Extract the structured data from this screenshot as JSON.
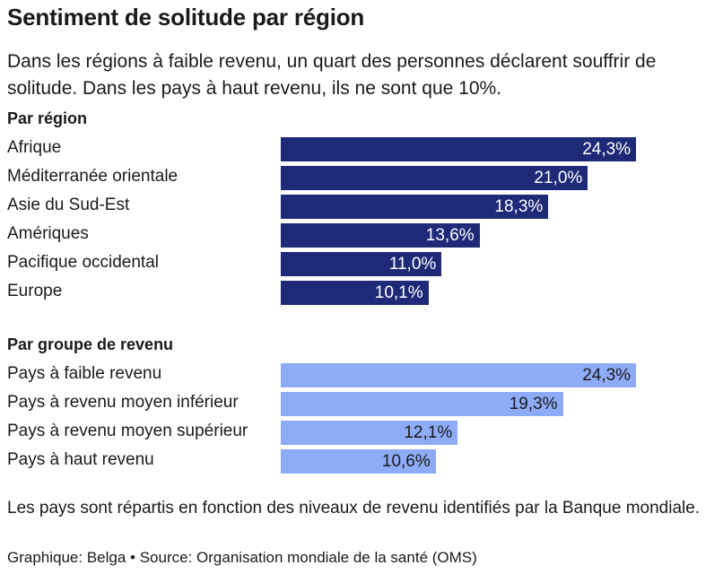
{
  "chart_data": {
    "type": "bar",
    "orientation": "horizontal",
    "title": "Sentiment de solitude par région",
    "subtitle": "Dans les régions à faible revenu, un quart des personnes déclarent souffrir de solitude. Dans les pays à haut revenu, ils ne sont que 10%.",
    "xlim": [
      0,
      25
    ],
    "groups": [
      {
        "name": "Par région",
        "color": "#1e2a78",
        "value_color": "#ffffff",
        "categories": [
          "Afrique",
          "Méditerranée orientale",
          "Asie du Sud-Est",
          "Amériques",
          "Pacifique occidental",
          "Europe"
        ],
        "values": [
          24.3,
          21.0,
          18.3,
          13.6,
          11.0,
          10.1
        ],
        "labels": [
          "24,3%",
          "21,0%",
          "18,3%",
          "13,6%",
          "11,0%",
          "10,1%"
        ]
      },
      {
        "name": "Par groupe de revenu",
        "color": "#8eabf7",
        "value_color": "#1a1a1a",
        "categories": [
          "Pays à faible revenu",
          "Pays à revenu moyen inférieur",
          "Pays à revenu moyen supérieur",
          "Pays à haut revenu"
        ],
        "values": [
          24.3,
          19.3,
          12.1,
          10.6
        ],
        "labels": [
          "24,3%",
          "19,3%",
          "12,1%",
          "10,6%"
        ]
      }
    ],
    "note": "Les pays sont répartis en fonction des niveaux de revenu identifiés par la Banque mondiale.",
    "credit": "Graphique: Belga • Source: Organisation mondiale de la santé (OMS)"
  }
}
